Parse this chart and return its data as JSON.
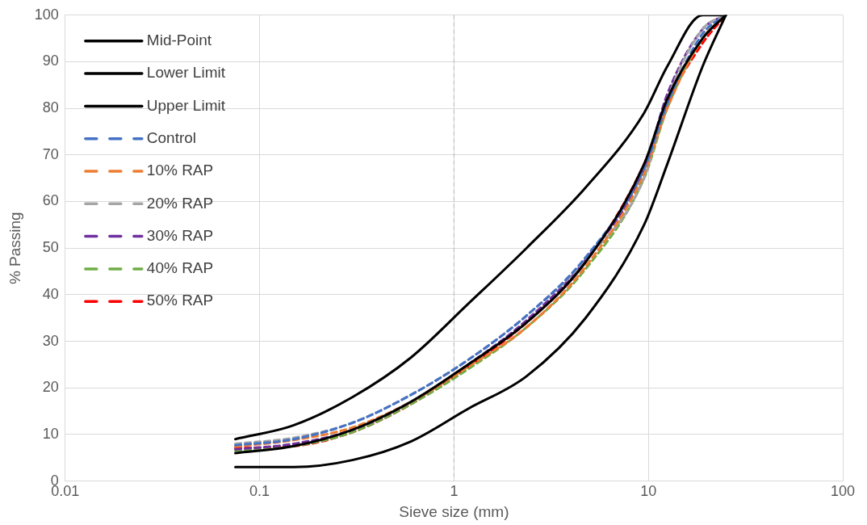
{
  "chart_data": {
    "type": "line",
    "xlabel": "Sieve size (mm)",
    "ylabel": "% Passing",
    "x": [
      0.075,
      0.15,
      0.3,
      0.6,
      1.18,
      2.36,
      4.75,
      9.5,
      12.5,
      19,
      25
    ],
    "log": "x",
    "xlim": [
      0.01,
      100
    ],
    "xticks": [
      0.01,
      0.1,
      1,
      10,
      100
    ],
    "ylim": [
      0,
      100
    ],
    "yticks": [
      0,
      10,
      20,
      30,
      40,
      50,
      60,
      70,
      80,
      90,
      100
    ],
    "grid": true,
    "legend": "top left",
    "marker": "none",
    "ref_lines": [
      {
        "axis": "x",
        "value": 1,
        "color": "#bfbfbf",
        "line_style": "dashed"
      }
    ],
    "series": [
      {
        "name": "Mid-Point",
        "color": "#000000",
        "line_style": "solid",
        "values": [
          6,
          7.5,
          11,
          17,
          25,
          34,
          47,
          68,
          82,
          95,
          100
        ]
      },
      {
        "name": "Lower Limit",
        "color": "#000000",
        "line_style": "solid",
        "values": [
          3,
          3,
          4.5,
          8.5,
          15.5,
          22.5,
          35,
          55,
          68,
          89,
          100
        ]
      },
      {
        "name": "Upper Limit",
        "color": "#000000",
        "line_style": "solid",
        "values": [
          9,
          12,
          18,
          26.5,
          38,
          50,
          63,
          79,
          89,
          100,
          100
        ]
      },
      {
        "name": "Control",
        "color": "#4472c4",
        "line_style": "dashed",
        "values": [
          7.7,
          9,
          12.5,
          18.5,
          26,
          35.5,
          48,
          67,
          81,
          96,
          100
        ]
      },
      {
        "name": "10% RAP",
        "color": "#ed7d31",
        "line_style": "dashed",
        "values": [
          7.4,
          8.8,
          11.5,
          17,
          24.5,
          33,
          46,
          66,
          80,
          95,
          100
        ]
      },
      {
        "name": "20% RAP",
        "color": "#a5a5a5",
        "line_style": "dashed",
        "values": [
          8,
          9.3,
          12.5,
          18.5,
          26,
          35.5,
          47.5,
          65,
          82,
          97,
          100
        ]
      },
      {
        "name": "30% RAP",
        "color": "#7030a0",
        "line_style": "dashed",
        "values": [
          6.8,
          8,
          11,
          17,
          25,
          34.5,
          47.5,
          67,
          83,
          97,
          100
        ]
      },
      {
        "name": "40% RAP",
        "color": "#70ad47",
        "line_style": "dashed",
        "values": [
          6.5,
          7.5,
          10.5,
          16.5,
          24,
          33,
          45.5,
          65,
          80,
          95,
          100
        ]
      },
      {
        "name": "50% RAP",
        "color": "#ff0000",
        "line_style": "dashed",
        "values": [
          7.1,
          7.5,
          10.5,
          16.5,
          24.5,
          34,
          47,
          68,
          81,
          94,
          100
        ]
      }
    ]
  }
}
